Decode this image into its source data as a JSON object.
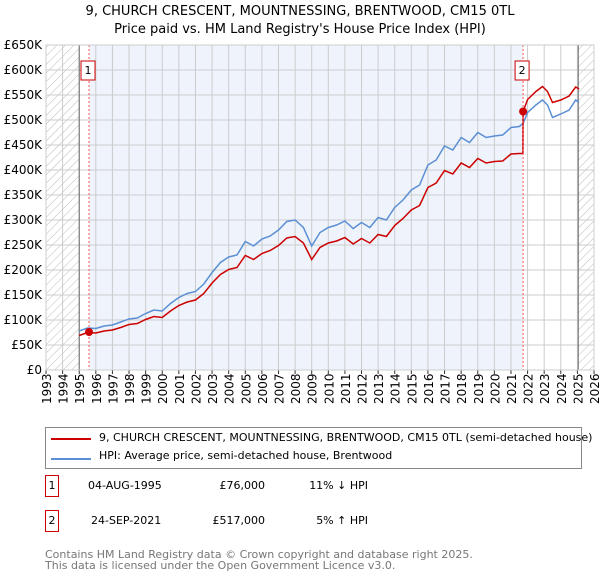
{
  "title": "9, CHURCH CRESCENT, MOUNTNESSING, BRENTWOOD, CM15 0TL",
  "subtitle": "Price paid vs. HM Land Registry's House Price Index (HPI)",
  "chart_data": {
    "type": "line",
    "title": "9, CHURCH CRESCENT, MOUNTNESSING, BRENTWOOD, CM15 0TL",
    "subtitle": "Price paid vs. HM Land Registry's House Price Index (HPI)",
    "xlim": [
      1993,
      2026
    ],
    "ylim": [
      0,
      650000
    ],
    "x_ticks": [
      "1993",
      "1994",
      "1995",
      "1996",
      "1997",
      "1998",
      "1999",
      "2000",
      "2001",
      "2002",
      "2003",
      "2004",
      "2005",
      "2006",
      "2007",
      "2008",
      "2009",
      "2010",
      "2011",
      "2012",
      "2013",
      "2014",
      "2015",
      "2016",
      "2017",
      "2018",
      "2019",
      "2020",
      "2021",
      "2022",
      "2023",
      "2024",
      "2025",
      "2026"
    ],
    "y_ticks": [
      "£0",
      "£50K",
      "£100K",
      "£150K",
      "£200K",
      "£250K",
      "£300K",
      "£350K",
      "£400K",
      "£450K",
      "£500K",
      "£550K",
      "£600K",
      "£650K"
    ],
    "grid": true,
    "series": [
      {
        "name": "9, CHURCH CRESCENT, MOUNTNESSING, BRENTWOOD, CM15 0TL (semi-detached house)",
        "color": "#cc0000",
        "x": [
          1995,
          1995.5,
          1996,
          1996.5,
          1997,
          1997.5,
          1998,
          1998.5,
          1999,
          1999.5,
          2000,
          2000.5,
          2001,
          2001.5,
          2002,
          2002.5,
          2003,
          2003.5,
          2004,
          2004.5,
          2005,
          2005.5,
          2006,
          2006.5,
          2007,
          2007.5,
          2008,
          2008.5,
          2009,
          2009.5,
          2010,
          2010.5,
          2011,
          2011.5,
          2012,
          2012.5,
          2013,
          2013.5,
          2014,
          2014.5,
          2015,
          2015.5,
          2016,
          2016.5,
          2017,
          2017.5,
          2018,
          2018.5,
          2019,
          2019.5,
          2020,
          2020.5,
          2021,
          2021.5,
          2021.72,
          2021.73,
          2022,
          2022.5,
          2022.9,
          2023.2,
          2023.5,
          2024,
          2024.5,
          2024.9,
          2025.1
        ],
        "values": [
          69000,
          75000,
          74000,
          78000,
          80000,
          85000,
          91000,
          93000,
          101000,
          107000,
          105000,
          118000,
          129000,
          136000,
          140000,
          153000,
          174000,
          191000,
          201000,
          205000,
          229000,
          221000,
          233000,
          239000,
          249000,
          264000,
          267000,
          254000,
          221000,
          245000,
          254000,
          258000,
          265000,
          252000,
          263000,
          254000,
          271000,
          267000,
          289000,
          303000,
          320000,
          329000,
          365000,
          374000,
          399000,
          392000,
          414000,
          405000,
          423000,
          414000,
          417000,
          418000,
          432000,
          433000,
          433000,
          517000,
          541000,
          557000,
          567000,
          557000,
          535000,
          540000,
          548000,
          566000,
          562000
        ]
      },
      {
        "name": "HPI: Average price, semi-detached house, Brentwood",
        "color": "#5b8fd4",
        "x": [
          1995,
          1995.5,
          1996,
          1996.5,
          1997,
          1997.5,
          1998,
          1998.5,
          1999,
          1999.5,
          2000,
          2000.5,
          2001,
          2001.5,
          2002,
          2002.5,
          2003,
          2003.5,
          2004,
          2004.5,
          2005,
          2005.5,
          2006,
          2006.5,
          2007,
          2007.5,
          2008,
          2008.5,
          2009,
          2009.5,
          2010,
          2010.5,
          2011,
          2011.5,
          2012,
          2012.5,
          2013,
          2013.5,
          2014,
          2014.5,
          2015,
          2015.5,
          2016,
          2016.5,
          2017,
          2017.5,
          2018,
          2018.5,
          2019,
          2019.5,
          2020,
          2020.5,
          2021,
          2021.5,
          2021.73,
          2022,
          2022.5,
          2022.9,
          2023.2,
          2023.5,
          2024,
          2024.5,
          2024.9,
          2025.1
        ],
        "values": [
          78000,
          84000,
          83000,
          88000,
          90000,
          96000,
          102000,
          104000,
          113000,
          120000,
          118000,
          133000,
          145000,
          153000,
          157000,
          172000,
          195000,
          215000,
          226000,
          230000,
          257000,
          248000,
          262000,
          268000,
          280000,
          297000,
          300000,
          285000,
          248000,
          275000,
          285000,
          290000,
          298000,
          283000,
          295000,
          285000,
          305000,
          300000,
          325000,
          340000,
          360000,
          370000,
          410000,
          420000,
          448000,
          440000,
          465000,
          455000,
          475000,
          465000,
          468000,
          470000,
          485000,
          487000,
          493000,
          515000,
          530000,
          540000,
          530000,
          505000,
          512000,
          520000,
          540000,
          535000
        ]
      }
    ],
    "annotations": [
      {
        "label": "1",
        "x": 1995.59,
        "y": 76000
      },
      {
        "label": "2",
        "x": 2021.73,
        "y": 517000
      }
    ],
    "data_range": [
      1995,
      2025.05
    ]
  },
  "legend": {
    "property": "9, CHURCH CRESCENT, MOUNTNESSING, BRENTWOOD, CM15 0TL (semi-detached house)",
    "hpi": "HPI: Average price, semi-detached house, Brentwood"
  },
  "sales": [
    {
      "num": "1",
      "date": "04-AUG-1995",
      "price": "£76,000",
      "hpi": "11% ↓ HPI"
    },
    {
      "num": "2",
      "date": "24-SEP-2021",
      "price": "£517,000",
      "hpi": "5% ↑ HPI"
    }
  ],
  "footer": {
    "line1": "Contains HM Land Registry data © Crown copyright and database right 2025.",
    "line2": "This data is licensed under the Open Government Licence v3.0."
  }
}
